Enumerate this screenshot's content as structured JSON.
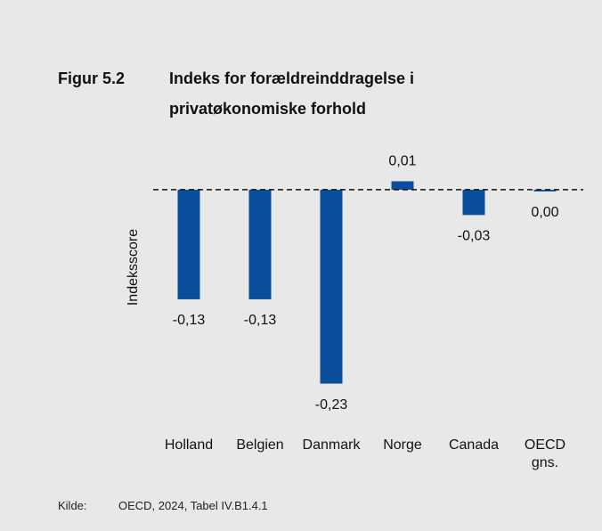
{
  "chart_data": {
    "type": "bar",
    "figure_label": "Figur 5.2",
    "title": "Indeks for forældreinddragelse i privatøkonomiske forhold",
    "ylabel": "Indeksscore",
    "categories": [
      "Holland",
      "Belgien",
      "Danmark",
      "Norge",
      "Canada",
      "OECD gns."
    ],
    "values": [
      -0.13,
      -0.13,
      -0.23,
      0.01,
      -0.03,
      -0.002
    ],
    "value_labels": [
      "-0,13",
      "-0,13",
      "-0,23",
      "0,01",
      "-0,03",
      "0,00"
    ],
    "color": "#0b4f9c",
    "ylim": [
      -0.25,
      0.02
    ],
    "source_label": "Kilde:",
    "source": "OECD, 2024, Tabel IV.B1.4.1"
  }
}
